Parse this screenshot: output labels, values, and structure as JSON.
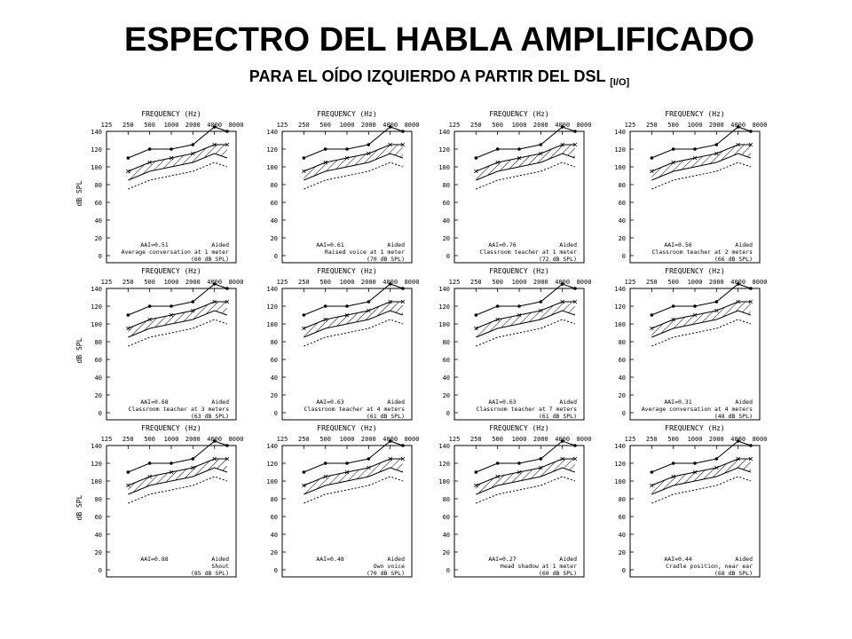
{
  "title": "ESPECTRO DEL HABLA AMPLIFICADO",
  "subtitle": "PARA EL OÍDO IZQUIERDO A PARTIR DEL DSL",
  "subtitle_suffix": "[I/O]",
  "colors": {
    "ink": "#000000",
    "background": "#ffffff"
  },
  "chart_data": [
    {
      "type": "line",
      "title": "",
      "xlabel": "FREQUENCY (Hz)",
      "ylabel": "dB SPL",
      "x": [
        250,
        500,
        1000,
        2000,
        4000,
        6000
      ],
      "x_ticks": [
        "125",
        "250",
        "500",
        "1000",
        "2000",
        "4000",
        "8000"
      ],
      "ylim": [
        0,
        140
      ],
      "y_ticks": [
        "0",
        "20",
        "40",
        "60",
        "80",
        "100",
        "120",
        "140"
      ],
      "aai": "AAI=0.51",
      "condition": "Average conversation at 1 meter",
      "level": "(60 dB SPL)",
      "aided": "Aided",
      "series": [
        {
          "values": [
            110,
            120,
            120,
            125,
            145,
            140
          ]
        },
        {
          "values": [
            95,
            105,
            110,
            115,
            125,
            125
          ]
        },
        {
          "values": [
            85,
            95,
            100,
            105,
            115,
            110
          ]
        },
        {
          "values": [
            75,
            85,
            90,
            95,
            105,
            100
          ]
        }
      ],
      "hatch": [
        {
          "upper": [
            95,
            105,
            110,
            120,
            135,
            125
          ],
          "lower": [
            85,
            90,
            95,
            100,
            115,
            110
          ]
        }
      ]
    },
    {
      "type": "line",
      "title": "",
      "xlabel": "FREQUENCY (Hz)",
      "ylabel": "dB SPL",
      "x": [
        250,
        500,
        1000,
        2000,
        4000,
        6000
      ],
      "x_ticks": [
        "125",
        "250",
        "500",
        "1000",
        "2000",
        "4000",
        "8000"
      ],
      "ylim": [
        0,
        140
      ],
      "y_ticks": [
        "0",
        "20",
        "40",
        "60",
        "80",
        "100",
        "120",
        "140"
      ],
      "aai": "AAI=0.61",
      "condition": "Raised voice at 1 meter",
      "level": "(70 dB SPL)",
      "aided": "Aided",
      "series": [
        {
          "values": [
            110,
            120,
            120,
            125,
            145,
            140
          ]
        },
        {
          "values": [
            95,
            105,
            110,
            115,
            125,
            125
          ]
        },
        {
          "values": [
            85,
            95,
            100,
            105,
            115,
            110
          ]
        },
        {
          "values": [
            75,
            85,
            90,
            95,
            105,
            100
          ]
        }
      ],
      "hatch": [
        {
          "upper": [
            95,
            105,
            115,
            125,
            135,
            130
          ]
        },
        {
          "lower": [
            85,
            90,
            100,
            105,
            115,
            115
          ]
        }
      ]
    },
    {
      "type": "line",
      "title": "",
      "xlabel": "FREQUENCY (Hz)",
      "ylabel": "dB SPL",
      "x": [
        250,
        500,
        1000,
        2000,
        4000,
        6000
      ],
      "x_ticks": [
        "125",
        "250",
        "500",
        "1000",
        "2000",
        "4000",
        "8000"
      ],
      "ylim": [
        0,
        140
      ],
      "y_ticks": [
        "0",
        "20",
        "40",
        "60",
        "80",
        "100",
        "120",
        "140"
      ],
      "aai": "AAI=0.76",
      "condition": "Classroom teacher at 1 meter",
      "level": "(72 dB SPL)",
      "aided": "Aided",
      "series": [
        {
          "values": [
            110,
            120,
            120,
            125,
            145,
            140
          ]
        },
        {
          "values": [
            95,
            105,
            110,
            115,
            125,
            125
          ]
        },
        {
          "values": [
            85,
            95,
            100,
            105,
            115,
            110
          ]
        },
        {
          "values": [
            75,
            85,
            90,
            95,
            105,
            100
          ]
        }
      ],
      "hatch": [
        {
          "upper": [
            95,
            110,
            115,
            125,
            140,
            130
          ]
        },
        {
          "lower": [
            85,
            95,
            100,
            110,
            120,
            115
          ]
        }
      ]
    },
    {
      "type": "line",
      "title": "",
      "xlabel": "FREQUENCY (Hz)",
      "ylabel": "dB SPL",
      "x": [
        250,
        500,
        1000,
        2000,
        4000,
        6000
      ],
      "x_ticks": [
        "125",
        "250",
        "500",
        "1000",
        "2000",
        "4000",
        "8000"
      ],
      "ylim": [
        0,
        140
      ],
      "y_ticks": [
        "0",
        "20",
        "40",
        "60",
        "80",
        "100",
        "120",
        "140"
      ],
      "aai": "AAI=0.56",
      "condition": "Classroom teacher at 2 meters",
      "level": "(66 dB SPL)",
      "aided": "Aided",
      "series": [
        {
          "values": [
            110,
            120,
            120,
            125,
            145,
            140
          ]
        },
        {
          "values": [
            95,
            105,
            110,
            115,
            125,
            125
          ]
        },
        {
          "values": [
            85,
            95,
            100,
            105,
            115,
            110
          ]
        },
        {
          "values": [
            75,
            85,
            90,
            95,
            105,
            100
          ]
        }
      ],
      "hatch": [
        {
          "upper": [
            95,
            105,
            110,
            120,
            135,
            125
          ]
        },
        {
          "lower": [
            85,
            90,
            95,
            105,
            115,
            110
          ]
        }
      ]
    },
    {
      "type": "line",
      "title": "",
      "xlabel": "FREQUENCY (Hz)",
      "ylabel": "dB SPL",
      "x": [
        250,
        500,
        1000,
        2000,
        4000,
        6000
      ],
      "x_ticks": [
        "125",
        "250",
        "500",
        "1000",
        "2000",
        "4000",
        "8000"
      ],
      "ylim": [
        0,
        140
      ],
      "y_ticks": [
        "0",
        "20",
        "40",
        "60",
        "80",
        "100",
        "120",
        "140"
      ],
      "aai": "AAI=0.68",
      "condition": "Classroom teacher at 3 meters",
      "level": "(63 dB SPL)",
      "aided": "Aided",
      "series": [
        {
          "values": [
            110,
            120,
            120,
            125,
            145,
            140
          ]
        },
        {
          "values": [
            95,
            105,
            110,
            115,
            125,
            125
          ]
        },
        {
          "values": [
            85,
            95,
            100,
            105,
            115,
            110
          ]
        },
        {
          "values": [
            75,
            85,
            90,
            95,
            105,
            100
          ]
        }
      ],
      "hatch": [
        {
          "upper": [
            95,
            108,
            112,
            122,
            137,
            128
          ]
        },
        {
          "lower": [
            85,
            92,
            97,
            107,
            117,
            112
          ]
        }
      ]
    },
    {
      "type": "line",
      "title": "",
      "xlabel": "FREQUENCY (Hz)",
      "ylabel": "dB SPL",
      "x": [
        250,
        500,
        1000,
        2000,
        4000,
        6000
      ],
      "x_ticks": [
        "125",
        "250",
        "500",
        "1000",
        "2000",
        "4000",
        "8000"
      ],
      "ylim": [
        0,
        140
      ],
      "y_ticks": [
        "0",
        "20",
        "40",
        "60",
        "80",
        "100",
        "120",
        "140"
      ],
      "aai": "AAI=0.63",
      "condition": "Classroom teacher at 4 meters",
      "level": "(61 dB SPL)",
      "aided": "Aided",
      "series": [
        {
          "values": [
            110,
            120,
            120,
            125,
            145,
            140
          ]
        },
        {
          "values": [
            95,
            105,
            110,
            115,
            125,
            125
          ]
        },
        {
          "values": [
            85,
            95,
            100,
            105,
            115,
            110
          ]
        },
        {
          "values": [
            75,
            85,
            90,
            95,
            105,
            100
          ]
        }
      ],
      "hatch": [
        {
          "upper": [
            95,
            106,
            110,
            120,
            135,
            126
          ]
        },
        {
          "lower": [
            85,
            90,
            95,
            105,
            115,
            110
          ]
        }
      ]
    },
    {
      "type": "line",
      "title": "",
      "xlabel": "FREQUENCY (Hz)",
      "ylabel": "dB SPL",
      "x": [
        250,
        500,
        1000,
        2000,
        4000,
        6000
      ],
      "x_ticks": [
        "125",
        "250",
        "500",
        "1000",
        "2000",
        "4000",
        "8000"
      ],
      "ylim": [
        0,
        140
      ],
      "y_ticks": [
        "0",
        "20",
        "40",
        "60",
        "80",
        "100",
        "120",
        "140"
      ],
      "aai": "AAI=0.63",
      "condition": "Classroom teacher at 7 meters",
      "level": "(61 dB SPL)",
      "aided": "Aided",
      "series": [
        {
          "values": [
            110,
            120,
            120,
            125,
            145,
            140
          ]
        },
        {
          "values": [
            95,
            105,
            110,
            115,
            125,
            125
          ]
        },
        {
          "values": [
            85,
            95,
            100,
            105,
            115,
            110
          ]
        },
        {
          "values": [
            75,
            85,
            90,
            95,
            105,
            100
          ]
        }
      ],
      "hatch": [
        {
          "upper": [
            95,
            106,
            110,
            120,
            135,
            126
          ]
        },
        {
          "lower": [
            85,
            90,
            95,
            105,
            115,
            110
          ]
        }
      ]
    },
    {
      "type": "line",
      "title": "",
      "xlabel": "FREQUENCY (Hz)",
      "ylabel": "dB SPL",
      "x": [
        250,
        500,
        1000,
        2000,
        4000,
        6000
      ],
      "x_ticks": [
        "125",
        "250",
        "500",
        "1000",
        "2000",
        "4000",
        "8000"
      ],
      "ylim": [
        0,
        140
      ],
      "y_ticks": [
        "0",
        "20",
        "40",
        "60",
        "80",
        "100",
        "120",
        "140"
      ],
      "aai": "AAI=0.31",
      "condition": "Average conversation at 4 meters",
      "level": "(48 dB SPL)",
      "aided": "Aided",
      "series": [
        {
          "values": [
            110,
            120,
            120,
            125,
            145,
            140
          ]
        },
        {
          "values": [
            95,
            105,
            110,
            115,
            125,
            125
          ]
        },
        {
          "values": [
            85,
            95,
            100,
            105,
            115,
            110
          ]
        },
        {
          "values": [
            75,
            85,
            90,
            95,
            105,
            100
          ]
        }
      ],
      "hatch": [
        {
          "upper": [
            92,
            100,
            105,
            112,
            118,
            115
          ]
        },
        {
          "lower": [
            85,
            90,
            95,
            100,
            105,
            105
          ]
        }
      ]
    },
    {
      "type": "line",
      "title": "",
      "xlabel": "FREQUENCY (Hz)",
      "ylabel": "dB SPL",
      "x": [
        250,
        500,
        1000,
        2000,
        4000,
        6000
      ],
      "x_ticks": [
        "125",
        "250",
        "500",
        "1000",
        "2000",
        "4000",
        "8000"
      ],
      "ylim": [
        0,
        140
      ],
      "y_ticks": [
        "0",
        "20",
        "40",
        "60",
        "80",
        "100",
        "120",
        "140"
      ],
      "aai": "AAI=0.88",
      "condition": "Shout",
      "level": "(85 dB SPL)",
      "aided": "Aided",
      "series": [
        {
          "values": [
            110,
            120,
            120,
            125,
            145,
            140
          ]
        },
        {
          "values": [
            95,
            105,
            110,
            115,
            125,
            125
          ]
        },
        {
          "values": [
            85,
            95,
            100,
            105,
            115,
            110
          ]
        },
        {
          "values": [
            75,
            85,
            90,
            95,
            105,
            100
          ]
        }
      ],
      "hatch": [
        {
          "upper": [
            100,
            112,
            118,
            128,
            142,
            132
          ]
        },
        {
          "lower": [
            85,
            95,
            100,
            110,
            120,
            115
          ]
        }
      ]
    },
    {
      "type": "line",
      "title": "",
      "xlabel": "FREQUENCY (Hz)",
      "ylabel": "dB SPL",
      "x": [
        250,
        500,
        1000,
        2000,
        4000,
        6000
      ],
      "x_ticks": [
        "125",
        "250",
        "500",
        "1000",
        "2000",
        "4000",
        "8000"
      ],
      "ylim": [
        0,
        140
      ],
      "y_ticks": [
        "0",
        "20",
        "40",
        "60",
        "80",
        "100",
        "120",
        "140"
      ],
      "aai": "AAI=0.48",
      "condition": "Own voice",
      "level": "(70 dB SPL)",
      "aided": "Aided",
      "series": [
        {
          "values": [
            110,
            120,
            120,
            125,
            145,
            140
          ]
        },
        {
          "values": [
            95,
            105,
            110,
            115,
            125,
            125
          ]
        },
        {
          "values": [
            85,
            95,
            100,
            105,
            115,
            110
          ]
        },
        {
          "values": [
            75,
            85,
            90,
            95,
            105,
            100
          ]
        }
      ],
      "hatch": [
        {
          "upper": [
            98,
            108,
            112,
            118,
            122,
            118
          ]
        },
        {
          "lower": [
            85,
            92,
            98,
            104,
            110,
            108
          ]
        }
      ]
    },
    {
      "type": "line",
      "title": "",
      "xlabel": "FREQUENCY (Hz)",
      "ylabel": "dB SPL",
      "x": [
        250,
        500,
        1000,
        2000,
        4000,
        6000
      ],
      "x_ticks": [
        "125",
        "250",
        "500",
        "1000",
        "2000",
        "4000",
        "8000"
      ],
      "ylim": [
        0,
        140
      ],
      "y_ticks": [
        "0",
        "20",
        "40",
        "60",
        "80",
        "100",
        "120",
        "140"
      ],
      "aai": "AAI=0.27",
      "condition": "Head shadow at 1 meter",
      "level": "(60 dB SPL)",
      "aided": "Aided",
      "series": [
        {
          "values": [
            110,
            120,
            120,
            125,
            145,
            140
          ]
        },
        {
          "values": [
            95,
            105,
            110,
            115,
            125,
            125
          ]
        },
        {
          "values": [
            85,
            95,
            100,
            105,
            115,
            110
          ]
        },
        {
          "values": [
            75,
            85,
            90,
            95,
            105,
            100
          ]
        }
      ],
      "hatch": [
        {
          "upper": [
            92,
            100,
            102,
            105,
            106,
            104
          ]
        },
        {
          "lower": [
            84,
            88,
            92,
            96,
            98,
            96
          ]
        }
      ]
    },
    {
      "type": "line",
      "title": "",
      "xlabel": "FREQUENCY (Hz)",
      "ylabel": "dB SPL",
      "x": [
        250,
        500,
        1000,
        2000,
        4000,
        6000
      ],
      "x_ticks": [
        "125",
        "250",
        "500",
        "1000",
        "2000",
        "4000",
        "8000"
      ],
      "ylim": [
        0,
        140
      ],
      "y_ticks": [
        "0",
        "20",
        "40",
        "60",
        "80",
        "100",
        "120",
        "140"
      ],
      "aai": "AAI=0.44",
      "condition": "Cradle position, near ear",
      "level": "(68 dB SPL)",
      "aided": "Aided",
      "series": [
        {
          "values": [
            110,
            120,
            120,
            125,
            145,
            140
          ]
        },
        {
          "values": [
            95,
            105,
            110,
            115,
            125,
            125
          ]
        },
        {
          "values": [
            85,
            95,
            100,
            105,
            115,
            110
          ]
        },
        {
          "values": [
            75,
            85,
            90,
            95,
            105,
            100
          ]
        }
      ],
      "hatch": [
        {
          "upper": [
            96,
            106,
            110,
            115,
            118,
            115
          ]
        },
        {
          "lower": [
            84,
            90,
            95,
            100,
            104,
            102
          ]
        }
      ]
    }
  ]
}
